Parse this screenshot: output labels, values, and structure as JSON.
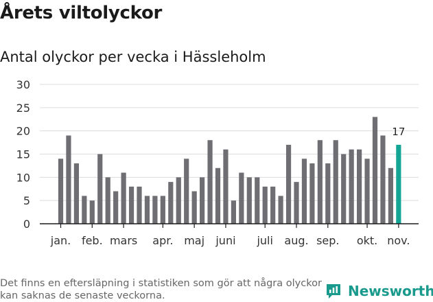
{
  "title": "Årets viltolyckor",
  "subtitle": "Antal olyckor per vecka i Hässleholm",
  "footnote": "Det finns en eftersläpning i statistiken som gör att några olyckor kan saknas de senaste veckorna.",
  "brand": {
    "name": "Newsworthy",
    "icon": "newsworthy-logo-icon"
  },
  "colors": {
    "bar": "#6f6e73",
    "highlight": "#13a596",
    "grid": "#dcdcdc",
    "axis": "#1a1a1a",
    "brand": "#1a9a8c"
  },
  "chart_data": {
    "type": "bar",
    "title": "Antal olyckor per vecka i Hässleholm",
    "xlabel": "",
    "ylabel": "",
    "ylim": [
      0,
      30
    ],
    "yticks": [
      0,
      5,
      10,
      15,
      20,
      25,
      30
    ],
    "grid": true,
    "weeks": [
      1,
      2,
      3,
      4,
      5,
      6,
      7,
      8,
      9,
      10,
      11,
      12,
      13,
      14,
      15,
      16,
      17,
      18,
      19,
      20,
      21,
      22,
      23,
      24,
      25,
      26,
      27,
      28,
      29,
      30,
      31,
      32,
      33,
      34,
      35,
      36,
      37,
      38,
      39,
      40,
      41,
      42,
      43,
      44
    ],
    "values": [
      14,
      19,
      13,
      6,
      5,
      15,
      10,
      7,
      11,
      8,
      8,
      6,
      6,
      6,
      9,
      10,
      14,
      7,
      10,
      18,
      12,
      16,
      5,
      11,
      10,
      10,
      8,
      8,
      6,
      17,
      9,
      14,
      13,
      18,
      13,
      18,
      15,
      16,
      16,
      14,
      23,
      19,
      12,
      17
    ],
    "highlight_index": 43,
    "highlight_label": "17",
    "month_labels": [
      {
        "label": "jan.",
        "week": 1
      },
      {
        "label": "feb.",
        "week": 5
      },
      {
        "label": "mars",
        "week": 9
      },
      {
        "label": "apr.",
        "week": 14
      },
      {
        "label": "maj",
        "week": 18
      },
      {
        "label": "juni",
        "week": 22
      },
      {
        "label": "juli",
        "week": 27
      },
      {
        "label": "aug.",
        "week": 31
      },
      {
        "label": "sep.",
        "week": 35
      },
      {
        "label": "okt.",
        "week": 40
      },
      {
        "label": "nov.",
        "week": 44
      }
    ]
  }
}
